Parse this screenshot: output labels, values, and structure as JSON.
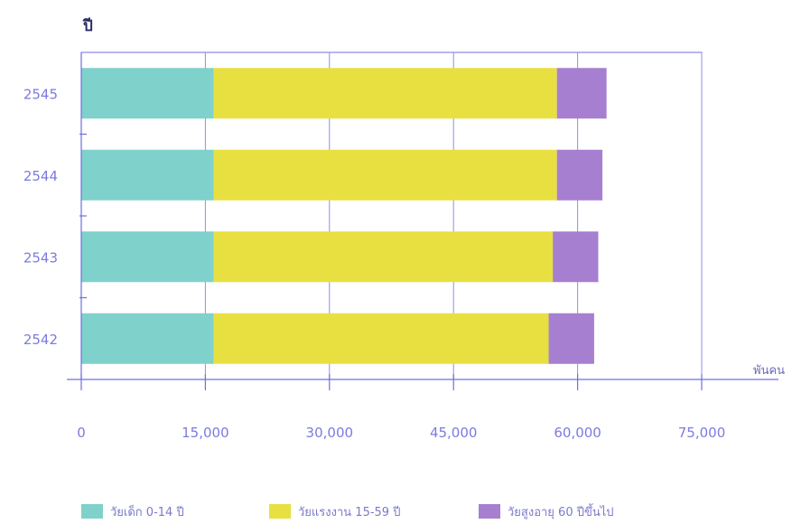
{
  "chart_data": {
    "type": "bar",
    "orientation": "horizontal",
    "stacked": true,
    "categories": [
      "2545",
      "2544",
      "2543",
      "2542"
    ],
    "series": [
      {
        "name": "วัยเด็ก 0-14 ปี",
        "color": "#7fd1cc",
        "values": [
          16000,
          16000,
          16000,
          16000
        ]
      },
      {
        "name": "วัยแรงงาน 15-59 ปี",
        "color": "#e8e040",
        "values": [
          41500,
          41500,
          41000,
          40500
        ]
      },
      {
        "name": "วัยสูงอายุ 60 ปีขึ้นไป",
        "color": "#a77fd0",
        "values": [
          6000,
          5500,
          5500,
          5500
        ]
      }
    ],
    "ylabel": "ปี",
    "xlabel": "พันคน",
    "xlim": [
      0,
      75000
    ],
    "xticks": [
      "0",
      "15,000",
      "30,000",
      "45,000",
      "60,000",
      "75,000"
    ],
    "grid": true,
    "legend_position": "bottom"
  }
}
